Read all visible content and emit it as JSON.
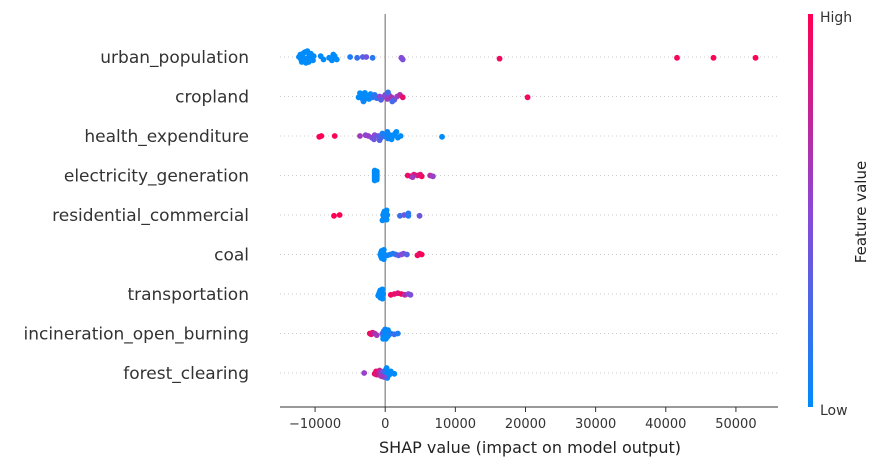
{
  "chart_data": {
    "type": "scatter",
    "subtype": "shap-beeswarm",
    "title": "",
    "xlabel": "SHAP value (impact on model output)",
    "ylabel": "",
    "xlim": [
      -15000,
      56000
    ],
    "xticks": [
      -10000,
      0,
      10000,
      20000,
      30000,
      40000,
      50000
    ],
    "xtick_labels": [
      "−10000",
      "0",
      "10000",
      "20000",
      "30000",
      "40000",
      "50000"
    ],
    "features": [
      "urban_population",
      "cropland",
      "health_expenditure",
      "electricity_generation",
      "residential_commercial",
      "coal",
      "transportation",
      "incineration_open_burning",
      "forest_clearing"
    ],
    "colorbar": {
      "label": "Feature value",
      "high_label": "High",
      "low_label": "Low",
      "high_color": "#ff0052",
      "low_color": "#008bfb"
    },
    "grid": "dotted horizontal lines per feature",
    "series": [
      {
        "feature": "urban_population",
        "points": [
          [
            -11500,
            0.1
          ],
          [
            -11800,
            -0.1
          ],
          [
            -11200,
            0.25
          ],
          [
            -11600,
            -0.25
          ],
          [
            -11000,
            0.05
          ],
          [
            -12000,
            0.15
          ],
          [
            -10800,
            -0.15
          ],
          [
            -11300,
            0.35
          ],
          [
            -11100,
            -0.35
          ],
          [
            -10500,
            0.05
          ],
          [
            -10300,
            0.2
          ],
          [
            -10600,
            -0.2
          ],
          [
            -12300,
            0.0
          ],
          [
            -10200,
            -0.05
          ],
          [
            -11900,
            0.3
          ],
          [
            -11400,
            -0.3
          ],
          [
            -10900,
            0.3
          ],
          [
            -12100,
            -0.15
          ],
          [
            -8000,
            0.05
          ],
          [
            -7600,
            0.2
          ],
          [
            -7200,
            -0.05
          ],
          [
            -6900,
            0.15
          ],
          [
            -7400,
            -0.15
          ],
          [
            -8800,
            0.15
          ],
          [
            -9200,
            -0.05
          ],
          [
            -5000,
            0.0
          ],
          [
            -4000,
            0.05
          ],
          [
            -3200,
            0.0
          ],
          [
            -2700,
            0.0
          ],
          [
            -1800,
            0.05
          ],
          [
            2300,
            0.05
          ],
          [
            2500,
            0.15
          ],
          [
            16300,
            0.1
          ],
          [
            41600,
            0.05
          ],
          [
            46800,
            0.05
          ],
          [
            52800,
            0.05
          ]
        ],
        "colors": [
          0,
          0,
          0,
          0,
          0,
          0,
          0,
          0,
          0,
          0,
          0,
          0,
          0,
          0,
          0,
          0,
          0,
          0,
          0,
          0,
          0,
          0,
          0,
          0,
          0,
          0.1,
          0.2,
          0.3,
          0.4,
          0.15,
          0.5,
          0.45,
          0.95,
          0.97,
          0.98,
          0.99
        ]
      },
      {
        "feature": "cropland",
        "points": [
          [
            -3500,
            0.0
          ],
          [
            -3300,
            0.12
          ],
          [
            -3200,
            -0.12
          ],
          [
            -3000,
            0.22
          ],
          [
            -2900,
            -0.22
          ],
          [
            -2700,
            0.05
          ],
          [
            -2500,
            -0.05
          ],
          [
            -2300,
            0.15
          ],
          [
            -2100,
            -0.15
          ],
          [
            -3800,
            0.05
          ],
          [
            -3600,
            -0.2
          ],
          [
            -1800,
            0.05
          ],
          [
            -1500,
            -0.1
          ],
          [
            -1200,
            0.1
          ],
          [
            -800,
            0.0
          ],
          [
            -400,
            0.05
          ],
          [
            0,
            -0.1
          ],
          [
            300,
            0.15
          ],
          [
            600,
            -0.05
          ],
          [
            900,
            0.05
          ],
          [
            1300,
            0.2
          ],
          [
            1700,
            0.0
          ],
          [
            2100,
            -0.1
          ],
          [
            2500,
            0.05
          ],
          [
            -600,
            0.2
          ],
          [
            400,
            -0.25
          ],
          [
            -3100,
            0.3
          ],
          [
            1000,
            0.3
          ],
          [
            20300,
            0.05
          ]
        ],
        "colors": [
          0,
          0,
          0,
          0,
          0,
          0,
          0,
          0,
          0,
          0,
          0,
          0.1,
          0.15,
          0.2,
          0.5,
          0.55,
          0.45,
          0.6,
          0.5,
          0.65,
          0.4,
          0.55,
          0.7,
          0.9,
          0.3,
          0.2,
          0.05,
          0.25,
          0.95
        ]
      },
      {
        "feature": "health_expenditure",
        "points": [
          [
            -9100,
            0.0
          ],
          [
            -9400,
            0.05
          ],
          [
            -7200,
            0.0
          ],
          [
            -3600,
            0.0
          ],
          [
            -2800,
            -0.05
          ],
          [
            -2400,
            0.0
          ],
          [
            -1900,
            0.1
          ],
          [
            -1500,
            -0.05
          ],
          [
            -1000,
            0.0
          ],
          [
            -600,
            0.1
          ],
          [
            -200,
            -0.1
          ],
          [
            100,
            0.05
          ],
          [
            400,
            0.15
          ],
          [
            700,
            -0.05
          ],
          [
            1000,
            0.05
          ],
          [
            1400,
            -0.15
          ],
          [
            1800,
            0.1
          ],
          [
            2200,
            0.0
          ],
          [
            -400,
            -0.15
          ],
          [
            300,
            -0.25
          ],
          [
            900,
            0.2
          ],
          [
            1600,
            -0.25
          ],
          [
            -1600,
            0.2
          ],
          [
            -800,
            0.25
          ],
          [
            8100,
            0.05
          ]
        ],
        "colors": [
          1.0,
          1.0,
          0.98,
          0.6,
          0.5,
          0.55,
          0.45,
          0.5,
          0.35,
          0.25,
          0.2,
          0.1,
          0.05,
          0.0,
          0.0,
          0.0,
          0.0,
          0.0,
          0.1,
          0.05,
          0.0,
          0.0,
          0.4,
          0.3,
          0.0
        ]
      },
      {
        "feature": "electricity_generation",
        "points": [
          [
            -1500,
            0.0
          ],
          [
            -1500,
            0.1
          ],
          [
            -1500,
            -0.1
          ],
          [
            -1500,
            0.2
          ],
          [
            -1500,
            -0.2
          ],
          [
            -1500,
            0.3
          ],
          [
            -1500,
            -0.3
          ],
          [
            -1200,
            0.05
          ],
          [
            -1200,
            -0.05
          ],
          [
            -1200,
            0.15
          ],
          [
            -1200,
            -0.15
          ],
          [
            -1200,
            0.25
          ],
          [
            -1200,
            -0.25
          ],
          [
            3200,
            0.0
          ],
          [
            3700,
            0.05
          ],
          [
            4100,
            -0.05
          ],
          [
            4600,
            0.0
          ],
          [
            5200,
            0.05
          ],
          [
            6400,
            0.0
          ],
          [
            6800,
            0.05
          ],
          [
            5000,
            -0.05
          ],
          [
            3900,
            0.1
          ]
        ],
        "colors": [
          0,
          0,
          0,
          0,
          0,
          0,
          0,
          0,
          0,
          0,
          0,
          0,
          0,
          0.9,
          0.95,
          0.85,
          0.8,
          1.0,
          0.7,
          0.55,
          0.9,
          0.6
        ]
      },
      {
        "feature": "residential_commercial",
        "points": [
          [
            -7300,
            0.05
          ],
          [
            -6500,
            0.0
          ],
          [
            -300,
            0.0
          ],
          [
            -200,
            0.12
          ],
          [
            -200,
            -0.12
          ],
          [
            -100,
            0.22
          ],
          [
            -100,
            -0.22
          ],
          [
            0,
            0.05
          ],
          [
            0,
            -0.05
          ],
          [
            100,
            0.15
          ],
          [
            100,
            -0.15
          ],
          [
            200,
            0.28
          ],
          [
            200,
            -0.28
          ],
          [
            -400,
            0.32
          ],
          [
            300,
            0.0
          ],
          [
            2100,
            0.05
          ],
          [
            2700,
            0.0
          ],
          [
            3300,
            0.05
          ],
          [
            3300,
            -0.1
          ],
          [
            4900,
            0.05
          ]
        ],
        "colors": [
          1.0,
          1.0,
          0,
          0,
          0,
          0,
          0,
          0,
          0,
          0,
          0,
          0,
          0,
          0,
          0,
          0.2,
          0.4,
          0.1,
          0.15,
          0.4
        ]
      },
      {
        "feature": "coal",
        "points": [
          [
            -700,
            0.0
          ],
          [
            -600,
            0.12
          ],
          [
            -600,
            -0.12
          ],
          [
            -500,
            0.22
          ],
          [
            -500,
            -0.22
          ],
          [
            -400,
            0.05
          ],
          [
            -400,
            -0.05
          ],
          [
            -300,
            0.15
          ],
          [
            -300,
            -0.15
          ],
          [
            -200,
            0.28
          ],
          [
            -200,
            -0.28
          ],
          [
            -100,
            0.0
          ],
          [
            300,
            0.05
          ],
          [
            700,
            0.0
          ],
          [
            1100,
            -0.05
          ],
          [
            1500,
            0.0
          ],
          [
            1900,
            0.05
          ],
          [
            2300,
            0.0
          ],
          [
            2600,
            -0.05
          ],
          [
            3100,
            0.0
          ],
          [
            4600,
            0.05
          ],
          [
            4900,
            -0.05
          ],
          [
            5200,
            0.0
          ]
        ],
        "colors": [
          0,
          0,
          0,
          0,
          0,
          0,
          0,
          0,
          0,
          0,
          0,
          0,
          0.05,
          0.05,
          0.1,
          0.2,
          0.3,
          0.5,
          0.45,
          0.3,
          0.95,
          0.9,
          0.98
        ]
      },
      {
        "feature": "transportation",
        "points": [
          [
            -900,
            0.0
          ],
          [
            -800,
            0.12
          ],
          [
            -800,
            -0.12
          ],
          [
            -700,
            0.22
          ],
          [
            -700,
            -0.22
          ],
          [
            -600,
            0.05
          ],
          [
            -600,
            -0.05
          ],
          [
            -500,
            0.15
          ],
          [
            -500,
            -0.15
          ],
          [
            -400,
            0.28
          ],
          [
            -400,
            -0.28
          ],
          [
            -300,
            0.0
          ],
          [
            800,
            0.05
          ],
          [
            1300,
            0.0
          ],
          [
            1800,
            -0.05
          ],
          [
            2300,
            0.0
          ],
          [
            2800,
            0.05
          ],
          [
            3300,
            0.0
          ],
          [
            3600,
            0.05
          ],
          [
            -1000,
            0.1
          ]
        ],
        "colors": [
          0,
          0,
          0,
          0,
          0,
          0,
          0,
          0,
          0,
          0,
          0,
          0,
          0.95,
          0.9,
          0.85,
          0.95,
          0.7,
          0.5,
          0.45,
          0
        ]
      },
      {
        "feature": "incineration_open_burning",
        "points": [
          [
            -2200,
            0.0
          ],
          [
            -2000,
            0.05
          ],
          [
            -1800,
            -0.05
          ],
          [
            -1500,
            0.0
          ],
          [
            -1200,
            0.1
          ],
          [
            -400,
            0.0
          ],
          [
            -300,
            0.15
          ],
          [
            -200,
            -0.15
          ],
          [
            -100,
            0.25
          ],
          [
            0,
            -0.25
          ],
          [
            100,
            0.05
          ],
          [
            200,
            -0.05
          ],
          [
            300,
            0.2
          ],
          [
            400,
            -0.2
          ],
          [
            500,
            0.1
          ],
          [
            -300,
            0.32
          ],
          [
            100,
            0.32
          ],
          [
            800,
            0.0
          ],
          [
            1300,
            0.05
          ],
          [
            1800,
            0.0
          ]
        ],
        "colors": [
          0.95,
          0.9,
          0.85,
          0.7,
          0.6,
          0.3,
          0.1,
          0.1,
          0.05,
          0.05,
          0.0,
          0.0,
          0.0,
          0.0,
          0.0,
          0.0,
          0.0,
          0.1,
          0.2,
          0.1
        ]
      },
      {
        "feature": "forest_clearing",
        "points": [
          [
            -3000,
            0.0
          ],
          [
            -1500,
            0.05
          ],
          [
            -1300,
            -0.1
          ],
          [
            -1200,
            0.1
          ],
          [
            -1000,
            0.0
          ],
          [
            -800,
            -0.15
          ],
          [
            -700,
            0.15
          ],
          [
            -600,
            0.0
          ],
          [
            -400,
            -0.05
          ],
          [
            -300,
            0.1
          ],
          [
            -200,
            -0.1
          ],
          [
            0,
            0.05
          ],
          [
            100,
            -0.2
          ],
          [
            200,
            0.2
          ],
          [
            300,
            0.0
          ],
          [
            400,
            -0.05
          ],
          [
            300,
            0.3
          ],
          [
            200,
            -0.3
          ],
          [
            600,
            0.1
          ],
          [
            800,
            -0.1
          ],
          [
            1300,
            0.05
          ],
          [
            -100,
            0.25
          ],
          [
            -500,
            0.2
          ]
        ],
        "colors": [
          0.55,
          0.95,
          0.9,
          0.85,
          0.8,
          0.75,
          0.7,
          0.6,
          0.5,
          0.4,
          0.3,
          0.1,
          0.2,
          0.05,
          0,
          0,
          0,
          0,
          0,
          0,
          0,
          0.4,
          0.6
        ]
      }
    ]
  }
}
